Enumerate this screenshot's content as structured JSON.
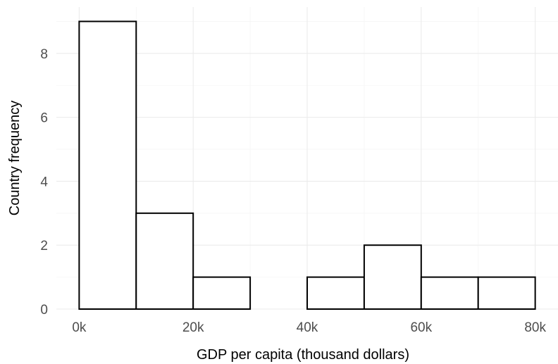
{
  "chart_data": {
    "type": "bar",
    "subtype": "histogram",
    "title": "",
    "xlabel": "GDP per capita (thousand dollars)",
    "ylabel": "Country frequency",
    "bin_width": 10000,
    "bins": [
      {
        "start": 0,
        "end": 10000,
        "count": 9
      },
      {
        "start": 10000,
        "end": 20000,
        "count": 3
      },
      {
        "start": 20000,
        "end": 30000,
        "count": 1
      },
      {
        "start": 30000,
        "end": 40000,
        "count": 0
      },
      {
        "start": 40000,
        "end": 50000,
        "count": 1
      },
      {
        "start": 50000,
        "end": 60000,
        "count": 2
      },
      {
        "start": 60000,
        "end": 70000,
        "count": 1
      },
      {
        "start": 70000,
        "end": 80000,
        "count": 1
      }
    ],
    "xlim": [
      -4000,
      84000
    ],
    "ylim": [
      0,
      9.45
    ],
    "x_ticks": [
      0,
      20000,
      40000,
      60000,
      80000
    ],
    "x_tick_labels": [
      "0k",
      "20k",
      "40k",
      "60k",
      "80k"
    ],
    "y_ticks": [
      0,
      2,
      4,
      6,
      8
    ],
    "y_tick_labels": [
      "0",
      "2",
      "4",
      "6",
      "8"
    ],
    "grid": true,
    "bar_fill": "#ffffff",
    "bar_stroke": "#000000",
    "grid_color": "#ebebeb",
    "tick_label_color": "#4d4d4d"
  }
}
